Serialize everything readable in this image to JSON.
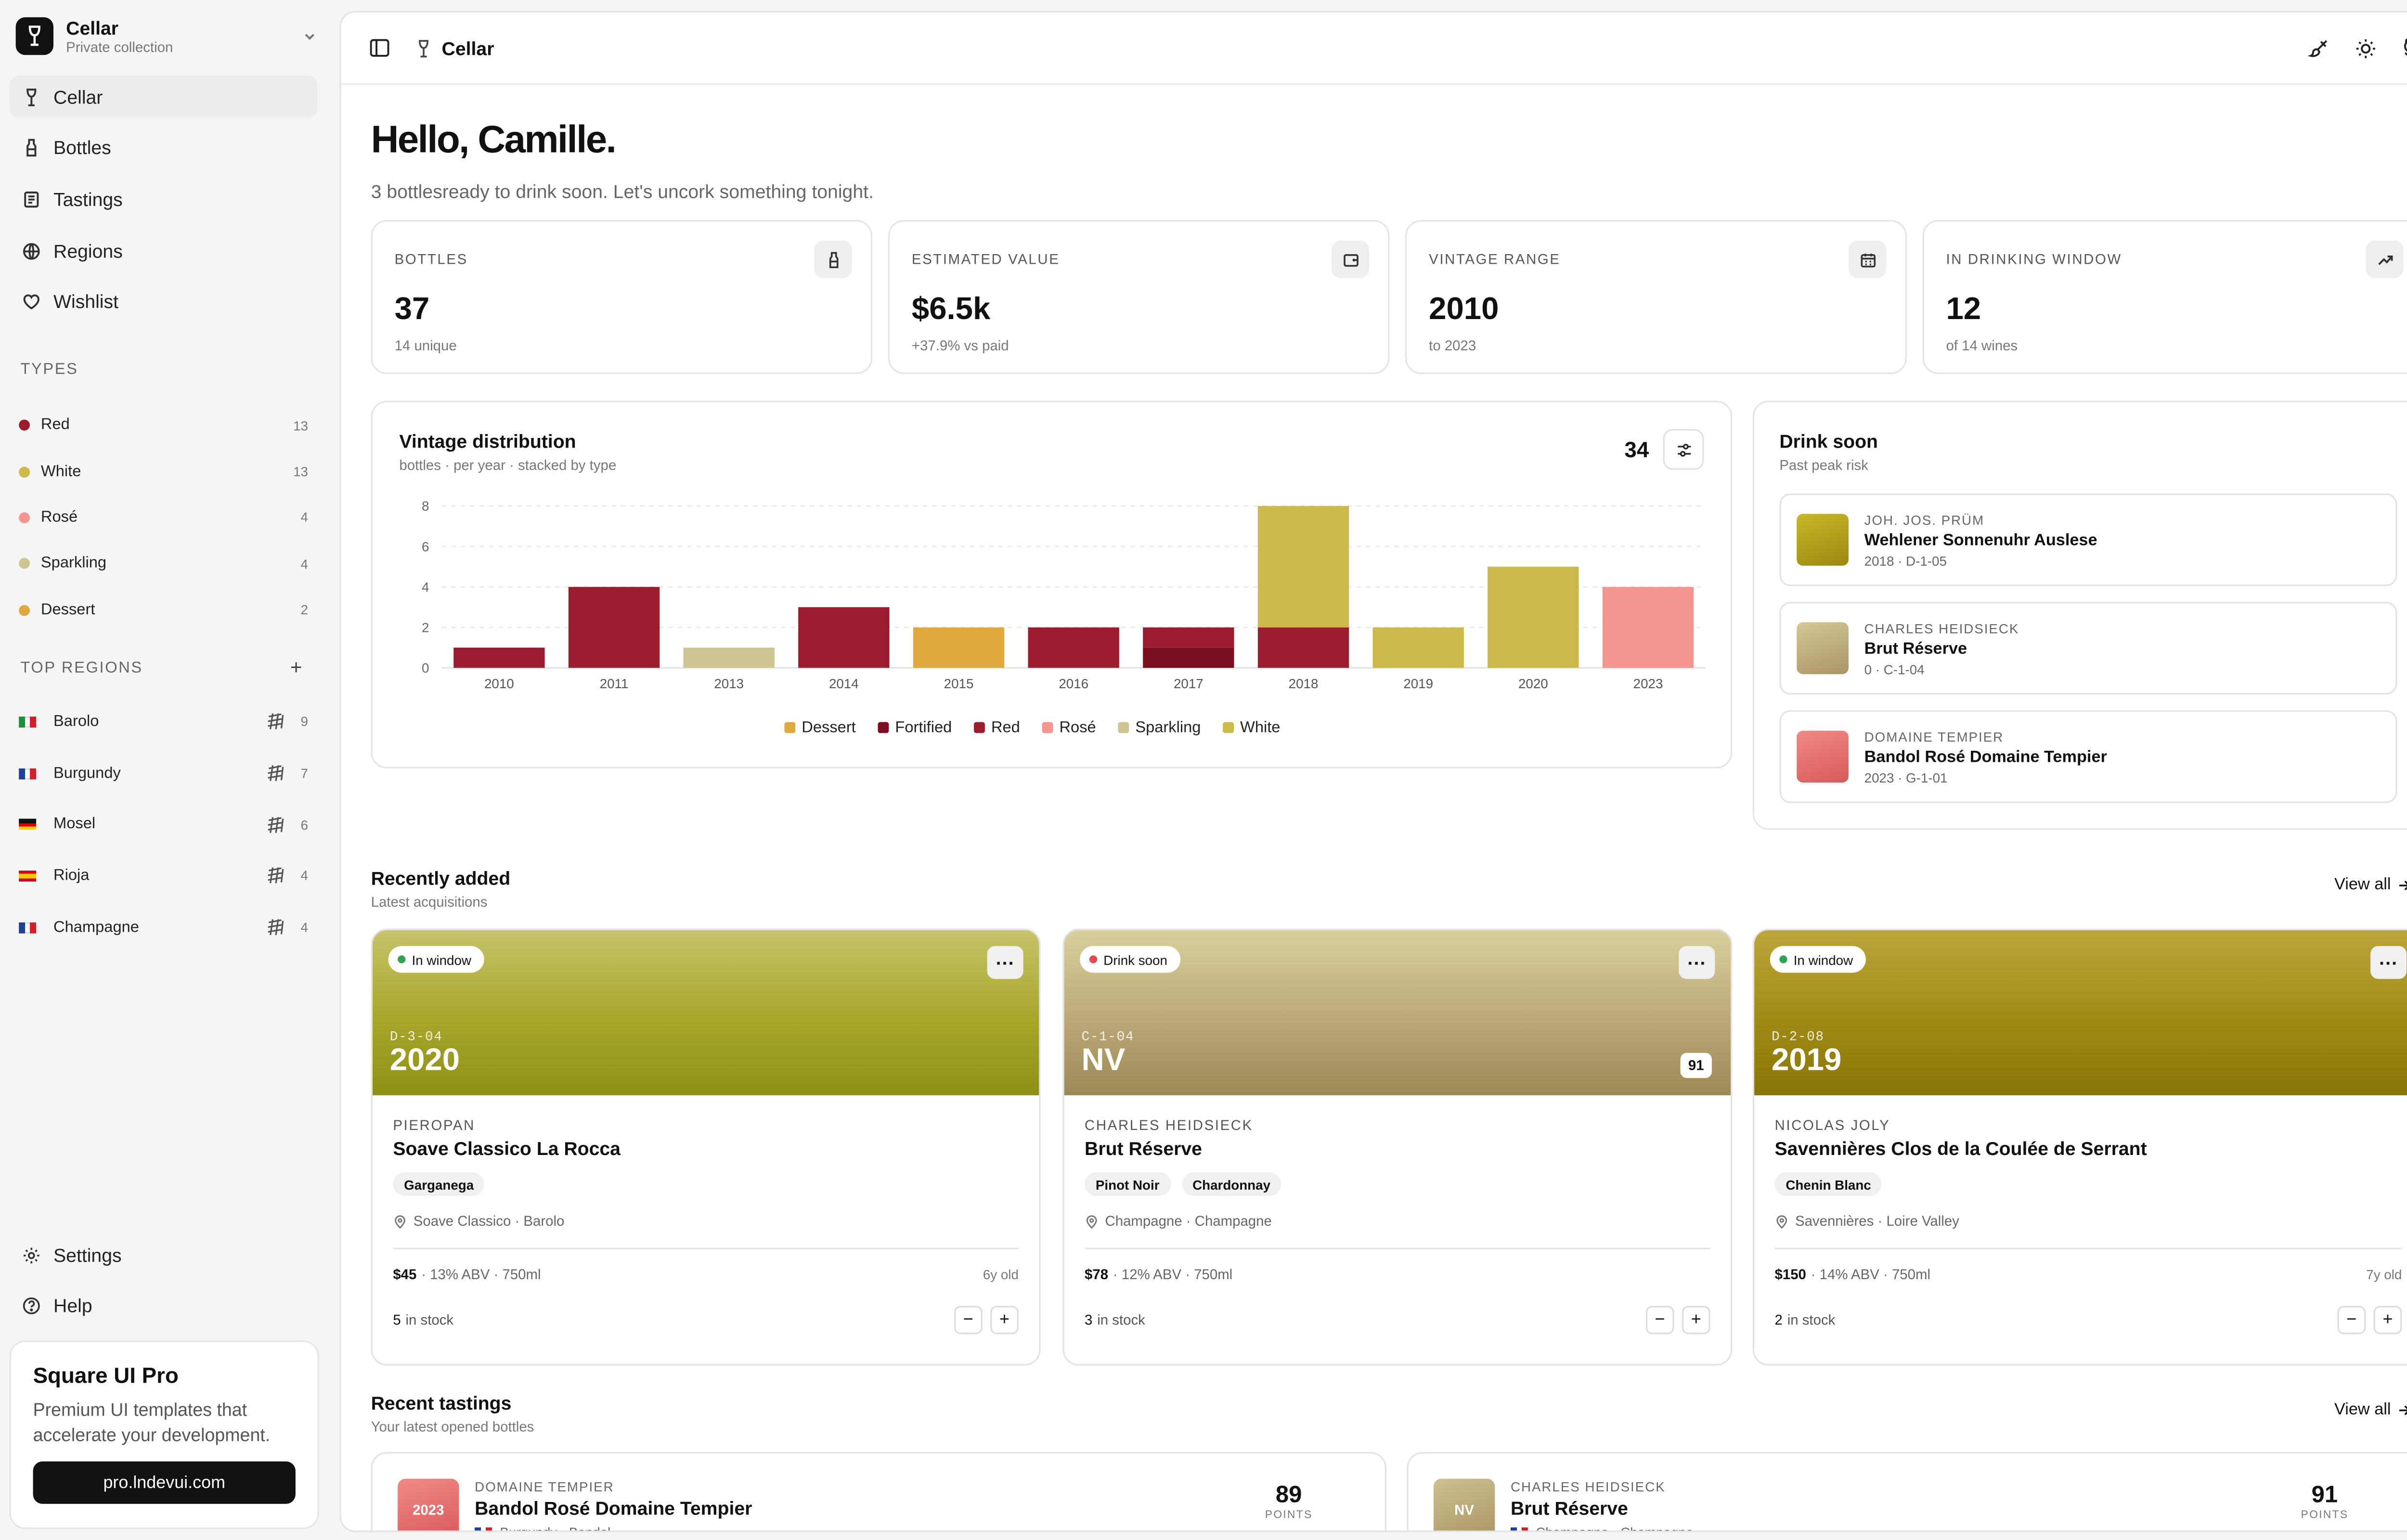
{
  "workspace": {
    "name": "Cellar",
    "subtitle": "Private collection"
  },
  "nav": [
    {
      "label": "Cellar",
      "icon": "wine-glass-icon",
      "active": true
    },
    {
      "label": "Bottles",
      "icon": "bottle-icon"
    },
    {
      "label": "Tastings",
      "icon": "notebook-icon"
    },
    {
      "label": "Regions",
      "icon": "globe-icon"
    },
    {
      "label": "Wishlist",
      "icon": "heart-icon"
    }
  ],
  "types_label": "TYPES",
  "types": [
    {
      "label": "Red",
      "count": "13",
      "color": "#9b1c2e"
    },
    {
      "label": "White",
      "count": "13",
      "color": "#cdb94a"
    },
    {
      "label": "Rosé",
      "count": "4",
      "color": "#f49590"
    },
    {
      "label": "Sparkling",
      "count": "4",
      "color": "#cfc592"
    },
    {
      "label": "Dessert",
      "count": "2",
      "color": "#e0a93f"
    }
  ],
  "regions_label": "TOP REGIONS",
  "regions": [
    {
      "label": "Barolo",
      "count": "9",
      "flag": [
        "#1e8f3a",
        "#ffffff",
        "#d0212b"
      ]
    },
    {
      "label": "Burgundy",
      "count": "7",
      "flag": [
        "#1f3f99",
        "#ffffff",
        "#d0212b"
      ]
    },
    {
      "label": "Mosel",
      "count": "6",
      "flag": [
        "#111111",
        "#dd0000",
        "#ffce00"
      ]
    },
    {
      "label": "Rioja",
      "count": "4",
      "flag": [
        "#c60b1e",
        "#ffc400",
        "#c60b1e"
      ]
    },
    {
      "label": "Champagne",
      "count": "4",
      "flag": [
        "#1f3f99",
        "#ffffff",
        "#d0212b"
      ]
    }
  ],
  "bottom_nav": [
    {
      "label": "Settings",
      "icon": "gear-icon"
    },
    {
      "label": "Help",
      "icon": "help-circle-icon"
    }
  ],
  "promo": {
    "title": "Square UI Pro",
    "text": "Premium UI templates that accelerate your development.",
    "button": "pro.lndevui.com"
  },
  "topbar": {
    "breadcrumb": "Cellar"
  },
  "greeting": {
    "title": "Hello, Camille.",
    "subtitle": "3 bottlesready to drink soon. Let's uncork something tonight."
  },
  "stats": [
    {
      "label": "BOTTLES",
      "value": "37",
      "sub": "14 unique",
      "icon": "bottle-icon"
    },
    {
      "label": "ESTIMATED VALUE",
      "value": "$6.5k",
      "sub": "+37.9% vs paid",
      "icon": "wallet-icon"
    },
    {
      "label": "VINTAGE RANGE",
      "value": "2010",
      "sub": "to 2023",
      "icon": "calendar-icon"
    },
    {
      "label": "IN DRINKING WINDOW",
      "value": "12",
      "sub": "of 14 wines",
      "icon": "trend-up-icon"
    }
  ],
  "chart_card": {
    "title": "Vintage distribution",
    "subtitle": "bottles · per year · stacked by type",
    "total": "34"
  },
  "chart_data": {
    "type": "bar",
    "stacked": true,
    "categories": [
      "2010",
      "2011",
      "2013",
      "2014",
      "2015",
      "2016",
      "2017",
      "2018",
      "2019",
      "2020",
      "2023"
    ],
    "series": [
      {
        "name": "Dessert",
        "color": "#e0a93f",
        "values": [
          0,
          0,
          0,
          0,
          2,
          0,
          0,
          0,
          0,
          0,
          0
        ]
      },
      {
        "name": "Fortified",
        "color": "#7a0f1f",
        "values": [
          0,
          0,
          0,
          0,
          0,
          0,
          1,
          0,
          0,
          0,
          0
        ]
      },
      {
        "name": "Red",
        "color": "#9b1c2e",
        "values": [
          1,
          4,
          0,
          3,
          0,
          2,
          1,
          2,
          0,
          0,
          0
        ]
      },
      {
        "name": "Rosé",
        "color": "#f49590",
        "values": [
          0,
          0,
          0,
          0,
          0,
          0,
          0,
          0,
          0,
          0,
          4
        ]
      },
      {
        "name": "Sparkling",
        "color": "#cfc592",
        "values": [
          0,
          0,
          1,
          0,
          0,
          0,
          0,
          0,
          0,
          0,
          0
        ]
      },
      {
        "name": "White",
        "color": "#cdb94a",
        "values": [
          0,
          0,
          0,
          0,
          0,
          0,
          0,
          6,
          2,
          5,
          0
        ]
      }
    ],
    "ylim": [
      0,
      8
    ],
    "yticks": [
      0,
      2,
      4,
      6,
      8
    ],
    "grid": true,
    "legend": "bottom"
  },
  "drink_soon": {
    "title": "Drink soon",
    "subtitle": "Past peak risk",
    "items": [
      {
        "producer": "JOH. JOS. PRÜM",
        "name": "Wehlener Sonnenuhr Auslese",
        "meta": "2018 · D-1-05",
        "color": "#b8a31f"
      },
      {
        "producer": "CHARLES HEIDSIECK",
        "name": "Brut Réserve",
        "meta": "0 · C-1-04",
        "color": "#c4b27f"
      },
      {
        "producer": "DOMAINE TEMPIER",
        "name": "Bandol Rosé Domaine Tempier",
        "meta": "2023 · G-1-01",
        "color": "#e9736f"
      }
    ]
  },
  "recent": {
    "title": "Recently added",
    "subtitle": "Latest acquisitions",
    "view_all": "View all",
    "cards": [
      {
        "status": "In window",
        "status_color": "#2ea44f",
        "location": "D-3-04",
        "year": "2020",
        "score": "",
        "producer": "PIEROPAN",
        "name": "Soave Classico La Rocca",
        "grapes": [
          "Garganega"
        ],
        "place": "Soave Classico · Barolo",
        "price": "$45",
        "details": "· 13% ABV · 750ml",
        "age": "6y old",
        "stock": "5",
        "stock_label": "in stock",
        "grad": [
          "#c3c061",
          "#a4a325",
          "#8a8f17"
        ]
      },
      {
        "status": "Drink soon",
        "status_color": "#e5484d",
        "location": "C-1-04",
        "year": "NV",
        "score": "91",
        "producer": "CHARLES HEIDSIECK",
        "name": "Brut Réserve",
        "grapes": [
          "Pinot Noir",
          "Chardonnay"
        ],
        "place": "Champagne · Champagne",
        "price": "$78",
        "details": "· 12% ABV · 750ml",
        "age": "",
        "stock": "3",
        "stock_label": "in stock",
        "grad": [
          "#d8cc9a",
          "#bda873",
          "#9e8a55"
        ]
      },
      {
        "status": "In window",
        "status_color": "#2ea44f",
        "location": "D-2-08",
        "year": "2019",
        "score": "",
        "producer": "NICOLAS JOLY",
        "name": "Savennières Clos de la Coulée de Serrant",
        "grapes": [
          "Chenin Blanc"
        ],
        "place": "Savennières · Loire Valley",
        "price": "$150",
        "details": "· 14% ABV · 750ml",
        "age": "7y old",
        "stock": "2",
        "stock_label": "in stock",
        "grad": [
          "#b9a230",
          "#9f8a14",
          "#8a7407"
        ]
      }
    ]
  },
  "tastings": {
    "title": "Recent tastings",
    "subtitle": "Your latest opened bottles",
    "view_all": "View all",
    "items": [
      {
        "badge": "2023",
        "color": "#e9736f",
        "producer": "DOMAINE TEMPIER",
        "name": "Bandol Rosé Domaine Tempier",
        "place": "Burgundy · Bandol",
        "points": "89",
        "points_label": "POINTS"
      },
      {
        "badge": "NV",
        "color": "#c4b27f",
        "producer": "CHARLES HEIDSIECK",
        "name": "Brut Réserve",
        "place": "Champagne · Champagne",
        "points": "91",
        "points_label": "POINTS"
      }
    ]
  }
}
